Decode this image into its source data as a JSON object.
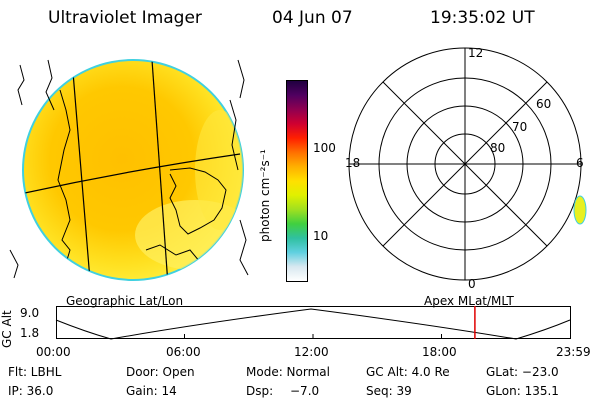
{
  "header": {
    "instrument": "Ultraviolet Imager",
    "date": "04 Jun 07",
    "time": "19:35:02 UT"
  },
  "colorbar": {
    "unit_label": "photon cm⁻²s⁻¹",
    "tick_100": "100",
    "tick_10": "10",
    "colors": [
      "#ffffff",
      "#d8e8f0",
      "#60d0e0",
      "#30c0a0",
      "#40d040",
      "#a0e020",
      "#e0f000",
      "#ffe000",
      "#ffb000",
      "#ff7000",
      "#ff2000",
      "#d00030",
      "#900050",
      "#500060",
      "#200040"
    ]
  },
  "polar": {
    "mlt_12": "12",
    "mlt_18": "18",
    "mlt_6": "6",
    "mlt_0": "0",
    "lat_60": "60",
    "lat_70": "70",
    "lat_80": "80"
  },
  "map_labels": {
    "geographic": "Geographic Lat/Lon",
    "apex": "Apex MLat/MLT"
  },
  "timeline": {
    "ylabel": "GC Alt",
    "y_top": "9.0",
    "y_bottom": "1.8",
    "ticks": [
      "00:00",
      "06:00",
      "12:00",
      "18:00",
      "23:59"
    ],
    "current_fraction": 0.815
  },
  "info": {
    "filter": "Flt: LBHL",
    "door": "Door: Open",
    "mode": "Mode: Normal",
    "gc_alt": "GC Alt: 4.0 Re",
    "glat": "GLat: −23.0",
    "ip": "IP: 36.0",
    "gain": "Gain: 14",
    "dsp_label": "Dsp:",
    "dsp_value": "−7.0",
    "seq": "Seq: 39",
    "glon": "GLon: 135.1"
  }
}
